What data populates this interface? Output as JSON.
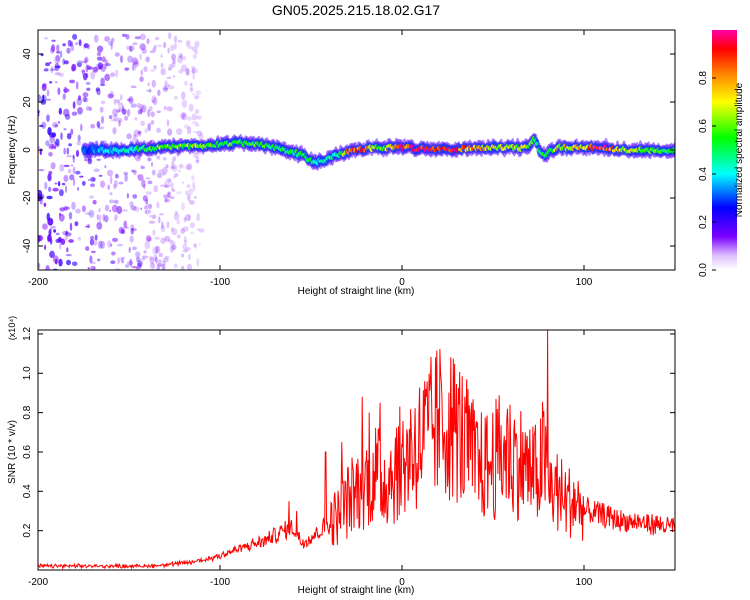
{
  "title": "GN05.2025.215.18.02.G17",
  "chart_data": [
    {
      "type": "heatmap",
      "xlabel": "Height of straight line (km)",
      "ylabel": "Frequency (Hz)",
      "xlim": [
        -200,
        150
      ],
      "ylim": [
        -50,
        50
      ],
      "x_ticks": [
        -200,
        -100,
        0,
        100
      ],
      "y_ticks": [
        -40,
        -20,
        0,
        20,
        40
      ],
      "grid": false,
      "colorbar": {
        "label": "Normalized spectral amplitude",
        "range": [
          0,
          1
        ],
        "ticks": [
          0.0,
          0.2,
          0.4,
          0.6,
          0.8
        ],
        "tick_labels": [
          "0.0",
          "0.2",
          "0.4",
          "0.6",
          "0.8"
        ],
        "colormap": [
          "#ffffff",
          "#6600ff",
          "#0000ff",
          "#00ffff",
          "#00ff00",
          "#ffff00",
          "#ff8000",
          "#ff0000",
          "#ff00aa"
        ]
      },
      "noise_region": {
        "x": [
          -200,
          -110
        ],
        "freq": [
          -50,
          48
        ]
      },
      "ridge": {
        "x": [
          -175,
          -150,
          -130,
          -110,
          -90,
          -75,
          -65,
          -55,
          -48,
          -42,
          -35,
          -30,
          -25,
          -20,
          -15,
          -10,
          0,
          20,
          40,
          60,
          70,
          72,
          75,
          78,
          85,
          100,
          110,
          120,
          135,
          150
        ],
        "freq": [
          0,
          0,
          1,
          2,
          3,
          2,
          0,
          -2,
          -5,
          -4,
          -2,
          -1,
          0,
          0,
          1,
          1,
          1,
          0,
          1,
          1,
          1,
          5,
          1,
          -2,
          1,
          1,
          1,
          0,
          0,
          0
        ],
        "amplitude": [
          0.3,
          0.45,
          0.6,
          0.6,
          0.55,
          0.55,
          0.5,
          0.5,
          0.45,
          0.4,
          0.5,
          0.8,
          0.9,
          0.85,
          0.6,
          0.65,
          0.9,
          0.95,
          0.75,
          0.65,
          0.65,
          0.5,
          0.55,
          0.5,
          0.65,
          0.75,
          0.95,
          0.7,
          0.6,
          0.5
        ]
      }
    },
    {
      "type": "line",
      "xlabel": "Height of straight line (km)",
      "ylabel": "SNR (10 * v/v)",
      "scale_label": "(x10⁴)",
      "xlim": [
        -200,
        150
      ],
      "ylim": [
        0,
        1.22
      ],
      "x_ticks": [
        -200,
        -100,
        0,
        100
      ],
      "y_ticks": [
        0.2,
        0.4,
        0.6,
        0.8,
        1.0,
        1.2
      ],
      "grid": false,
      "color": "#ff0000",
      "series": [
        {
          "x": [
            -200,
            -180,
            -160,
            -140,
            -125,
            -115,
            -105,
            -95,
            -85,
            -75,
            -65,
            -60,
            -55,
            -48,
            -42,
            -35,
            -30,
            -25,
            -20,
            -15,
            -10,
            -5,
            0,
            5,
            10,
            15,
            20,
            25,
            30,
            35,
            40,
            45,
            50,
            55,
            60,
            65,
            70,
            75,
            78,
            80,
            82,
            85,
            90,
            95,
            100,
            110,
            120,
            130,
            140,
            150
          ],
          "y": [
            0.02,
            0.02,
            0.02,
            0.02,
            0.03,
            0.04,
            0.06,
            0.09,
            0.12,
            0.15,
            0.2,
            0.22,
            0.14,
            0.18,
            0.22,
            0.28,
            0.35,
            0.4,
            0.45,
            0.5,
            0.45,
            0.5,
            0.55,
            0.6,
            0.65,
            0.7,
            0.75,
            0.75,
            0.72,
            0.65,
            0.55,
            0.52,
            0.55,
            0.6,
            0.58,
            0.55,
            0.5,
            0.48,
            0.6,
            0.4,
            0.42,
            0.4,
            0.35,
            0.35,
            0.3,
            0.28,
            0.25,
            0.24,
            0.23,
            0.22
          ]
        }
      ],
      "spikes": [
        {
          "x": -62,
          "y": 0.35
        },
        {
          "x": -58,
          "y": 0.3
        },
        {
          "x": -42,
          "y": 0.6
        },
        {
          "x": -33,
          "y": 0.65
        },
        {
          "x": -22,
          "y": 0.88
        },
        {
          "x": -18,
          "y": 0.8
        },
        {
          "x": -12,
          "y": 0.85
        },
        {
          "x": 5,
          "y": 0.7
        },
        {
          "x": 20,
          "y": 0.82
        },
        {
          "x": 35,
          "y": 0.8
        },
        {
          "x": 50,
          "y": 0.8
        },
        {
          "x": 58,
          "y": 0.82
        },
        {
          "x": 80,
          "y": 1.22
        },
        {
          "x": 97,
          "y": 0.38
        }
      ]
    }
  ]
}
